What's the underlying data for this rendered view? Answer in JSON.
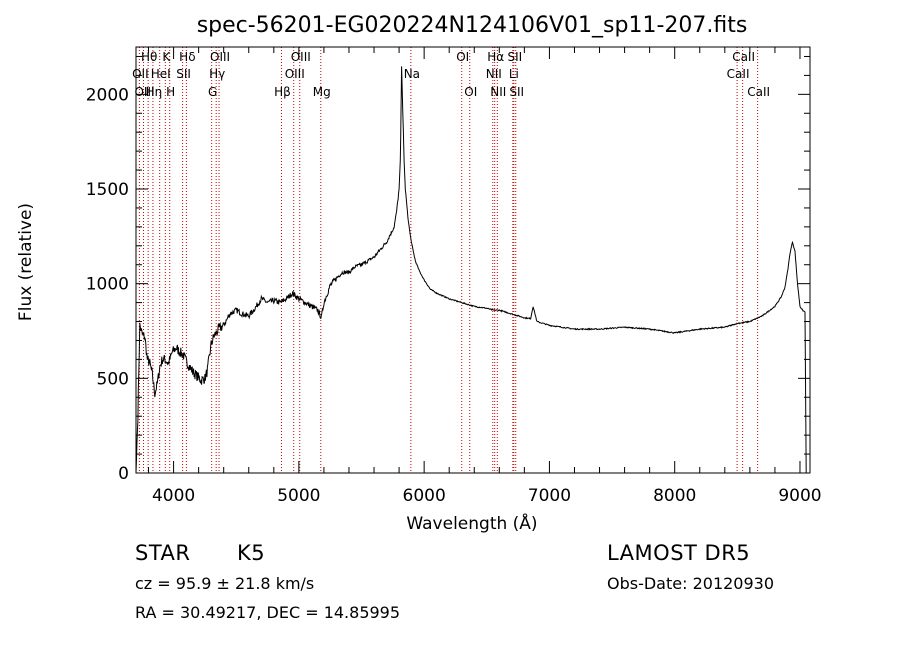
{
  "chart_data": {
    "type": "line",
    "title": "spec-56201-EG020224N124106V01_sp11-207.fits",
    "xlabel": "Wavelength (Å)",
    "ylabel": "Flux (relative)",
    "xlim": [
      3700,
      9080
    ],
    "ylim": [
      0,
      2250
    ],
    "x_ticks": [
      "4000",
      "5000",
      "6000",
      "7000",
      "8000",
      "9000"
    ],
    "x_tick_values": [
      4000,
      5000,
      6000,
      7000,
      8000,
      9000
    ],
    "y_ticks": [
      "0",
      "500",
      "1000",
      "1500",
      "2000"
    ],
    "y_tick_values": [
      0,
      500,
      1000,
      1500,
      2000
    ],
    "line_color": "#000000",
    "marker_color": "#cc0000",
    "series": [
      {
        "x": [
          3700,
          3715,
          3730,
          3750,
          3770,
          3790,
          3810,
          3830,
          3850,
          3870,
          3890,
          3910,
          3930,
          3960,
          3990,
          4020,
          4050,
          4080,
          4100,
          4130,
          4160,
          4190,
          4220,
          4250,
          4270,
          4300,
          4320,
          4340,
          4360,
          4400,
          4450,
          4500,
          4550,
          4600,
          4650,
          4700,
          4750,
          4800,
          4850,
          4900,
          4950,
          5000,
          5050,
          5100,
          5150,
          5180,
          5200,
          5250,
          5300,
          5350,
          5400,
          5450,
          5500,
          5550,
          5600,
          5650,
          5700,
          5730,
          5760,
          5780,
          5800,
          5810,
          5815,
          5820,
          5830,
          5840,
          5850,
          5870,
          5890,
          5910,
          5930,
          5960,
          6000,
          6050,
          6100,
          6150,
          6200,
          6300,
          6400,
          6500,
          6550,
          6600,
          6650,
          6700,
          6800,
          6850,
          6870,
          6900,
          7000,
          7200,
          7400,
          7600,
          7800,
          8000,
          8200,
          8400,
          8500,
          8600,
          8700,
          8800,
          8850,
          8880,
          8900,
          8920,
          8940,
          8960,
          8980,
          9000,
          9020,
          9040,
          9050,
          9060
        ],
        "values": [
          0,
          300,
          780,
          730,
          720,
          600,
          580,
          520,
          420,
          470,
          560,
          600,
          600,
          580,
          640,
          660,
          640,
          620,
          590,
          560,
          530,
          510,
          490,
          500,
          540,
          680,
          720,
          740,
          760,
          780,
          840,
          860,
          840,
          830,
          870,
          920,
          900,
          910,
          900,
          920,
          950,
          920,
          900,
          880,
          860,
          820,
          900,
          990,
          1030,
          1060,
          1060,
          1090,
          1100,
          1120,
          1140,
          1180,
          1220,
          1260,
          1300,
          1380,
          1500,
          1650,
          1900,
          2150,
          1900,
          1650,
          1500,
          1350,
          1250,
          1180,
          1120,
          1070,
          1020,
          970,
          950,
          935,
          920,
          900,
          880,
          870,
          860,
          860,
          850,
          840,
          820,
          815,
          880,
          800,
          780,
          760,
          760,
          770,
          760,
          740,
          760,
          770,
          790,
          800,
          830,
          880,
          930,
          980,
          1060,
          1160,
          1220,
          1170,
          1000,
          880,
          860,
          850,
          0,
          0
        ]
      }
    ],
    "lines": [
      {
        "name": "Hθ",
        "x": 3797,
        "row": 0
      },
      {
        "name": "OII",
        "x": 3727,
        "row": 1
      },
      {
        "name": "OIII",
        "x": 3760,
        "row": 2
      },
      {
        "name": "Hη",
        "x": 3835,
        "row": 2
      },
      {
        "name": "K",
        "x": 3934,
        "row": 0
      },
      {
        "name": "HeI",
        "x": 3889,
        "row": 1
      },
      {
        "name": "H",
        "x": 3969,
        "row": 2
      },
      {
        "name": "Hδ",
        "x": 4102,
        "row": 0
      },
      {
        "name": "SII",
        "x": 4072,
        "row": 1
      },
      {
        "name": "OIII",
        "x": 4363,
        "row": 0
      },
      {
        "name": "Hγ",
        "x": 4340,
        "row": 1
      },
      {
        "name": "G",
        "x": 4304,
        "row": 2
      },
      {
        "name": "Hβ",
        "x": 4861,
        "row": 2
      },
      {
        "name": "OIII",
        "x": 5007,
        "row": 0
      },
      {
        "name": "OIII",
        "x": 4959,
        "row": 1
      },
      {
        "name": "Mg",
        "x": 5175,
        "row": 2
      },
      {
        "name": "Na",
        "x": 5894,
        "row": 1
      },
      {
        "name": "OI",
        "x": 6300,
        "row": 0
      },
      {
        "name": "OI",
        "x": 6364,
        "row": 2
      },
      {
        "name": "Hα",
        "x": 6563,
        "row": 0
      },
      {
        "name": "NII",
        "x": 6548,
        "row": 1
      },
      {
        "name": "NII",
        "x": 6584,
        "row": 2
      },
      {
        "name": "SII",
        "x": 6716,
        "row": 0
      },
      {
        "name": "Li",
        "x": 6708,
        "row": 1
      },
      {
        "name": "SII",
        "x": 6731,
        "row": 2
      },
      {
        "name": "CaII",
        "x": 8542,
        "row": 0
      },
      {
        "name": "CaII",
        "x": 8498,
        "row": 1
      },
      {
        "name": "CaII",
        "x": 8662,
        "row": 2
      }
    ]
  },
  "info": {
    "class_label": "STAR",
    "subclass": "K5",
    "survey": "LAMOST DR5",
    "redshift": "cz = 95.9 ± 21.8 km/s",
    "obs_date": "Obs-Date: 20120930",
    "coords": "RA =  30.49217, DEC =  14.85995"
  }
}
